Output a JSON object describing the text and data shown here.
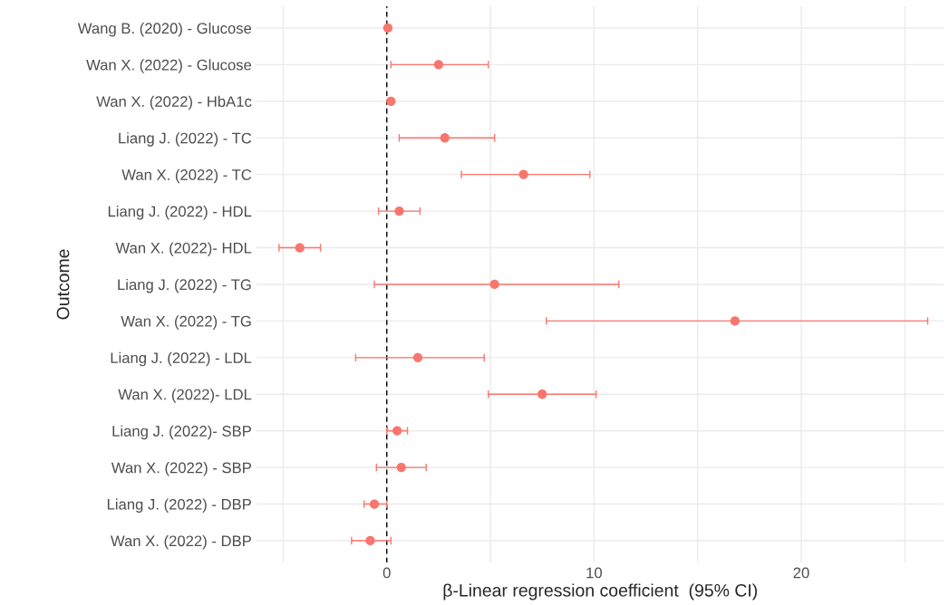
{
  "chart_data": {
    "type": "scatter",
    "orientation": "horizontal",
    "xlabel": "β-Linear regression coefficient  (95% CI)",
    "ylabel": "Outcome",
    "categories": [
      "Wang B. (2020) - Glucose",
      "Wan X. (2022) - Glucose",
      "Wan X. (2022) - HbA1c",
      "Liang J. (2022) - TC",
      "Wan X. (2022) - TC",
      "Liang J. (2022) - HDL",
      "Wan X. (2022)- HDL",
      "Liang J. (2022) - TG",
      "Wan X. (2022) - TG",
      "Liang J. (2022) - LDL",
      "Wan X. (2022)- LDL",
      "Liang J. (2022)- SBP",
      "Wan X. (2022) - SBP",
      "Liang J. (2022) - DBP",
      "Wan X. (2022) - DBP"
    ],
    "values": [
      0.05,
      2.5,
      0.2,
      2.8,
      6.6,
      0.6,
      -4.2,
      5.2,
      16.8,
      1.5,
      7.5,
      0.5,
      0.7,
      -0.6,
      -0.8
    ],
    "errors": [
      null,
      [
        0.2,
        4.9
      ],
      null,
      [
        0.6,
        5.2
      ],
      [
        3.6,
        9.8
      ],
      [
        -0.4,
        1.6
      ],
      [
        -5.2,
        -3.2
      ],
      [
        -0.6,
        11.2
      ],
      [
        7.7,
        26.1
      ],
      [
        -1.5,
        4.7
      ],
      [
        4.9,
        10.1
      ],
      [
        0.0,
        1.0
      ],
      [
        -0.5,
        1.9
      ],
      [
        -1.1,
        0.0
      ],
      [
        -1.7,
        0.2
      ]
    ],
    "color": "#f8766d",
    "marker": "circle",
    "xlim": [
      -6.3,
      26.9
    ],
    "xticks": [
      {
        "value": -5,
        "label": null
      },
      0,
      {
        "value": 5,
        "label": null
      },
      10,
      {
        "value": 15,
        "label": null
      },
      20,
      {
        "value": 25,
        "label": null
      }
    ],
    "grid": true,
    "ref_lines": [
      {
        "axis": "x",
        "value": 0,
        "color": "#000000",
        "line_style": "dashed"
      }
    ]
  }
}
